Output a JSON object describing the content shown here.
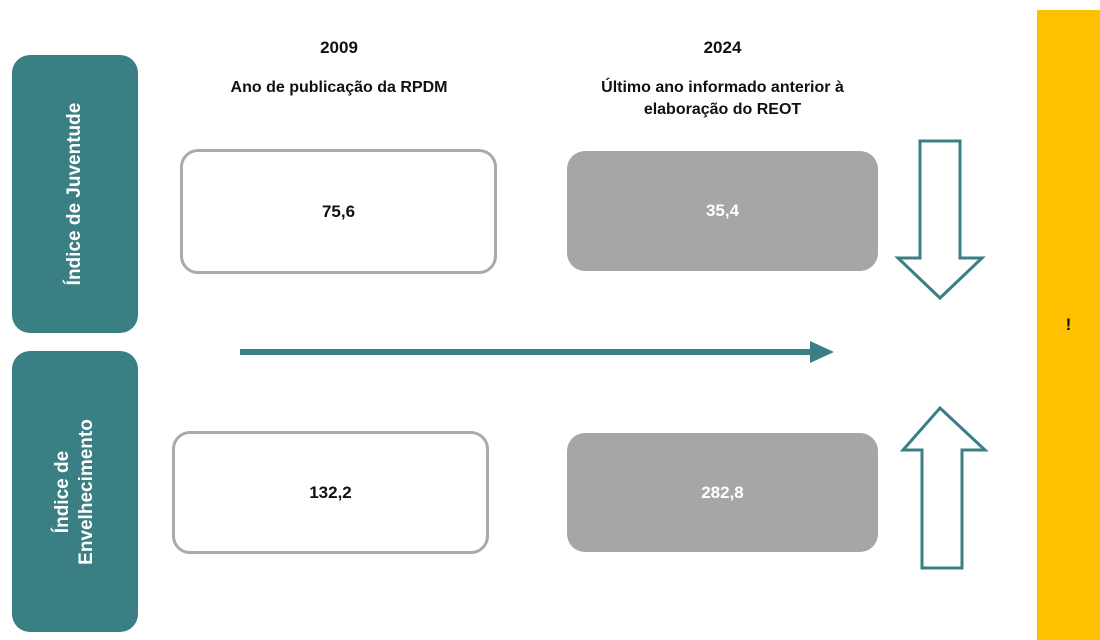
{
  "columns": [
    {
      "year": "2009",
      "description": "Ano de publicação da RPDM"
    },
    {
      "year": "2024",
      "description": "Último ano informado anterior à elaboração do REOT"
    }
  ],
  "rows": [
    {
      "label": "Índice de Juventude",
      "values": [
        "75,6",
        "35,4"
      ]
    },
    {
      "label": "Índice de Envelhecimento",
      "values": [
        "132,2",
        "282,8"
      ]
    }
  ],
  "sidebar": {
    "text": "!"
  }
}
